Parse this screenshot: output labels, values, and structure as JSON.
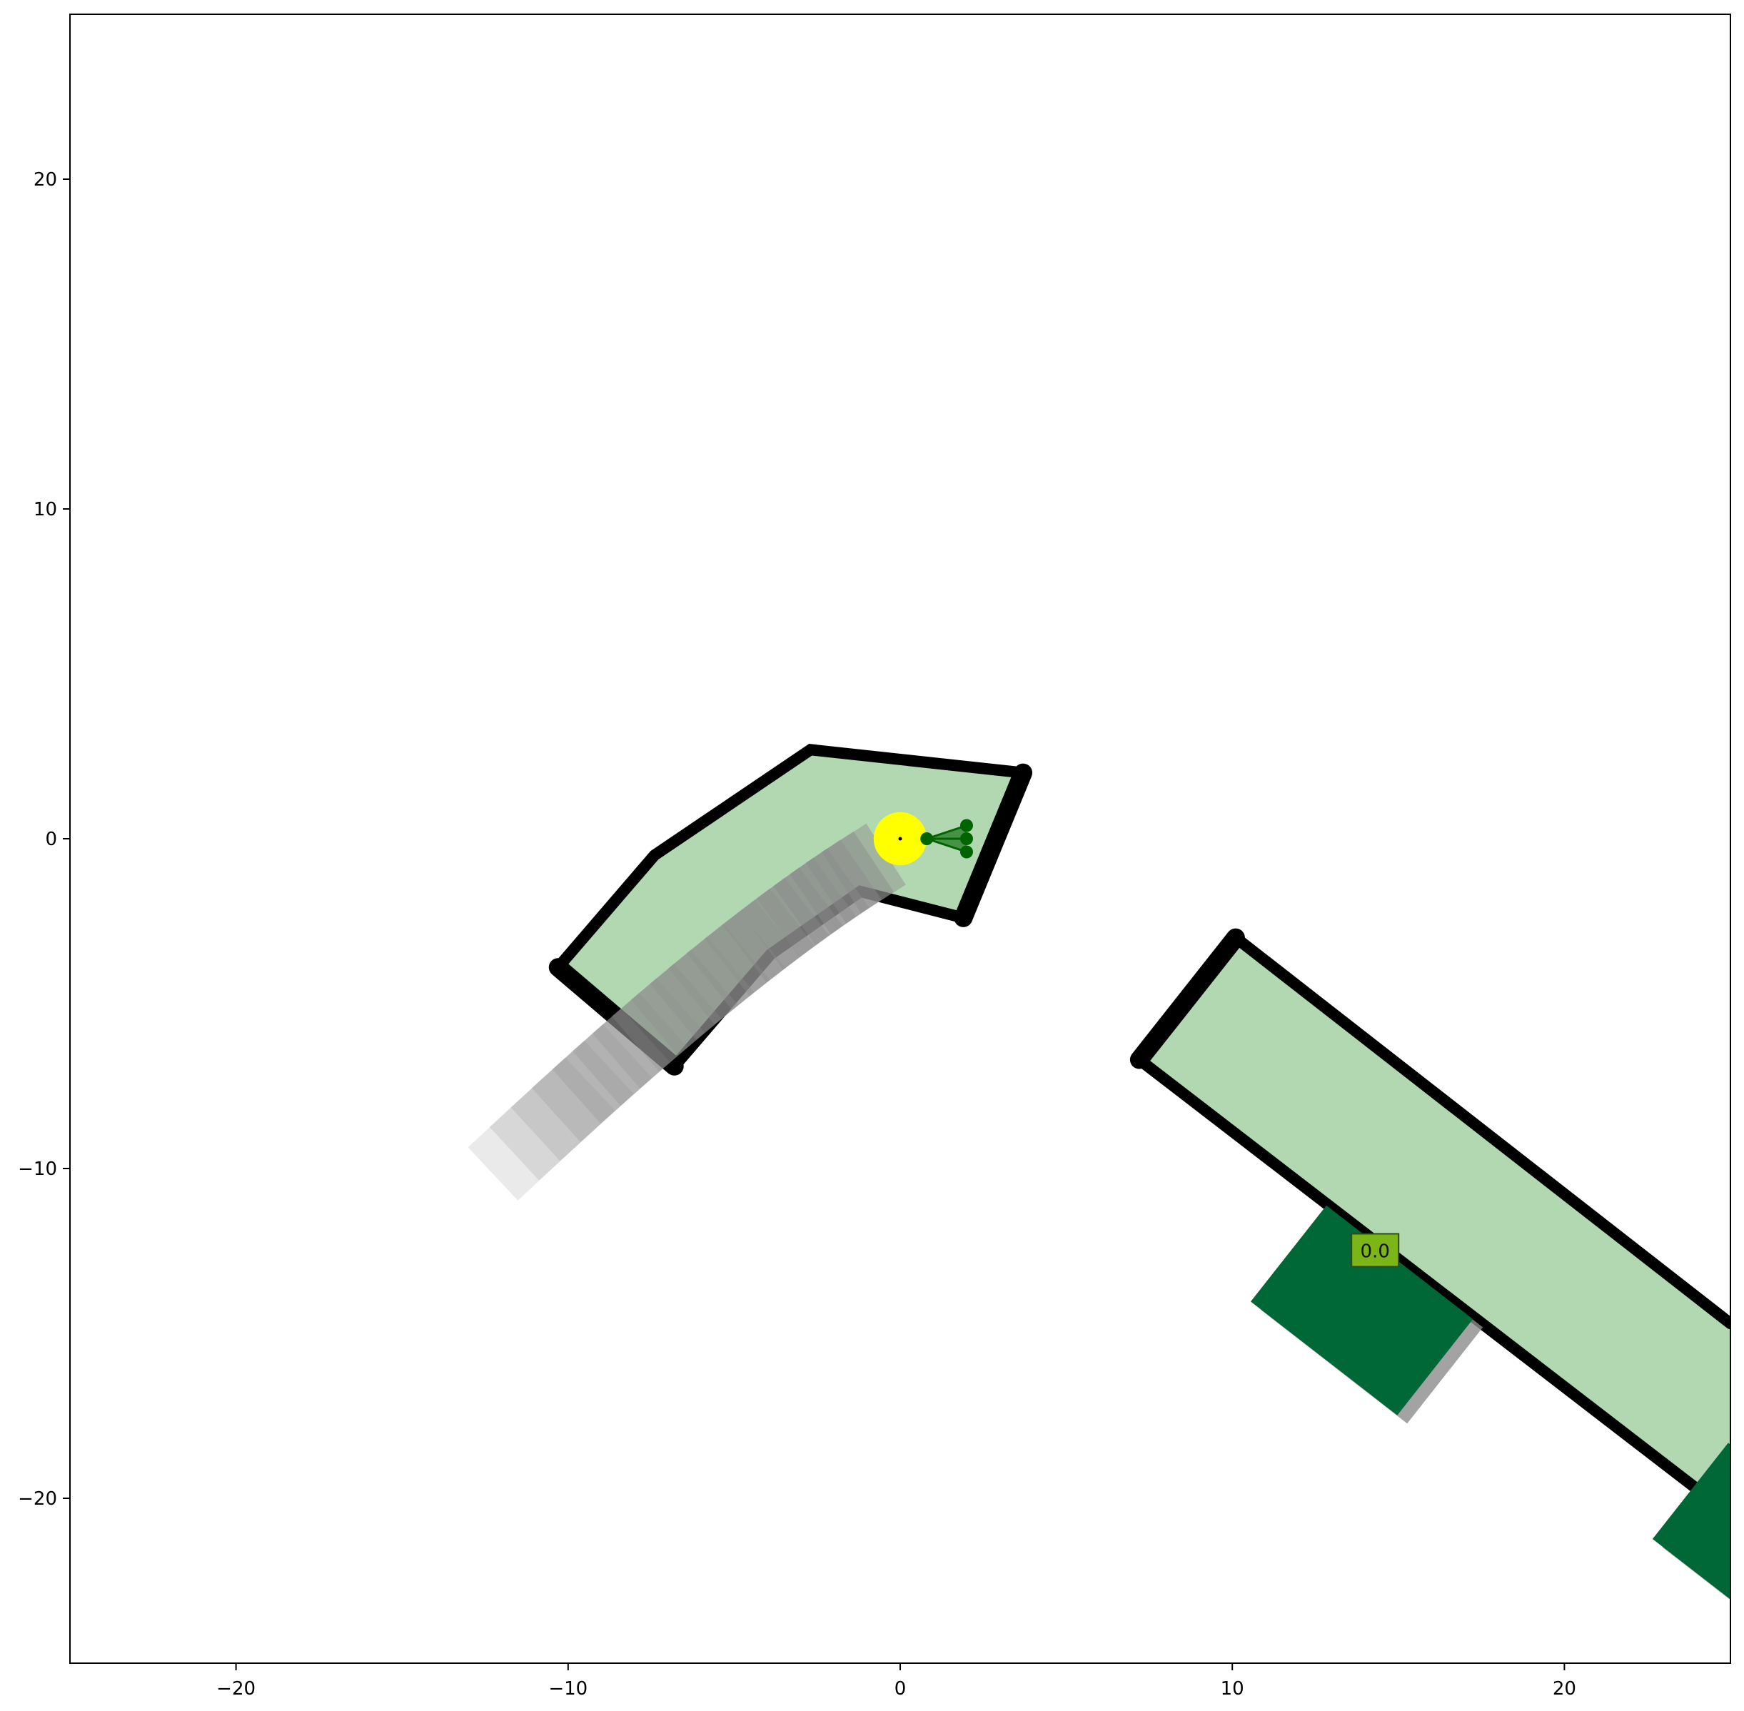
{
  "plot": {
    "xlim": [
      -25,
      25
    ],
    "ylim": [
      -25,
      25
    ],
    "x_ticks": [
      {
        "value": -20,
        "label": "−20"
      },
      {
        "value": -10,
        "label": "−10"
      },
      {
        "value": 0,
        "label": "0"
      },
      {
        "value": 10,
        "label": "10"
      },
      {
        "value": 20,
        "label": "20"
      }
    ],
    "y_ticks": [
      {
        "value": 20,
        "label": "20"
      },
      {
        "value": 10,
        "label": "10"
      },
      {
        "value": 0,
        "label": "0"
      },
      {
        "value": -10,
        "label": "−10"
      },
      {
        "value": -20,
        "label": "−20"
      }
    ]
  },
  "colors": {
    "lane_fill": "#b2d8b2",
    "boundary": "#000000",
    "vehicle": "#006837",
    "shadow": "#8c8c8c",
    "trail": "#8c8c8c",
    "ego": "#ffff00",
    "sensor": "#006400",
    "badge_fill": "#7cb518"
  },
  "road_near": {
    "polygon": [
      [
        -2.7,
        2.7
      ],
      [
        3.7,
        2.0
      ],
      [
        1.9,
        -2.4
      ],
      [
        -1.2,
        -1.6
      ],
      [
        -3.9,
        -3.5
      ],
      [
        -6.8,
        -6.9
      ],
      [
        -10.3,
        -3.9
      ],
      [
        -7.4,
        -0.5
      ]
    ],
    "boundary_left": [
      [
        -10.3,
        -3.9
      ],
      [
        -7.4,
        -0.5
      ],
      [
        -2.7,
        2.7
      ],
      [
        3.7,
        2.0
      ]
    ],
    "boundary_right": [
      [
        -6.8,
        -6.9
      ],
      [
        -3.9,
        -3.5
      ],
      [
        -1.2,
        -1.6
      ],
      [
        1.9,
        -2.4
      ]
    ],
    "entry_edge": [
      [
        -10.3,
        -3.9
      ],
      [
        -6.8,
        -6.9
      ]
    ],
    "exit_edge": [
      [
        3.7,
        2.0
      ],
      [
        1.9,
        -2.4
      ]
    ]
  },
  "road_far": {
    "polygon": [
      [
        10.1,
        -3.0
      ],
      [
        25.0,
        -14.7
      ],
      [
        25.0,
        -20.5
      ],
      [
        7.2,
        -6.7
      ]
    ],
    "boundary_top": [
      [
        10.1,
        -3.0
      ],
      [
        25.0,
        -14.7
      ]
    ],
    "boundary_bottom": [
      [
        7.2,
        -6.7
      ],
      [
        25.0,
        -20.5
      ]
    ],
    "entry_edge": [
      [
        10.1,
        -3.0
      ],
      [
        7.2,
        -6.7
      ]
    ]
  },
  "trail": {
    "count": 20,
    "start": [
      -10.8,
      -8.8
    ],
    "mid": [
      -5.0,
      -3.4
    ],
    "end": [
      -1.1,
      -0.9
    ],
    "length_start": 4.0,
    "length_end": 1.6,
    "width": 2.2
  },
  "ego": {
    "center": [
      0,
      0
    ],
    "radius": 0.8,
    "sensor_origin": [
      0.8,
      0
    ],
    "sensor_points": [
      [
        2.0,
        0.4
      ],
      [
        2.0,
        0.0
      ],
      [
        2.0,
        -0.4
      ]
    ]
  },
  "vehicles": [
    {
      "center": [
        13.9,
        -14.3
      ],
      "length": 5.6,
      "width": 3.7,
      "angle": -38,
      "badge_text": "0.0",
      "badge_pos": [
        14.3,
        -12.5
      ]
    },
    {
      "center": [
        26.0,
        -21.5
      ],
      "length": 5.6,
      "width": 3.7,
      "angle": -38,
      "badge_text": "",
      "badge_pos": null
    }
  ]
}
